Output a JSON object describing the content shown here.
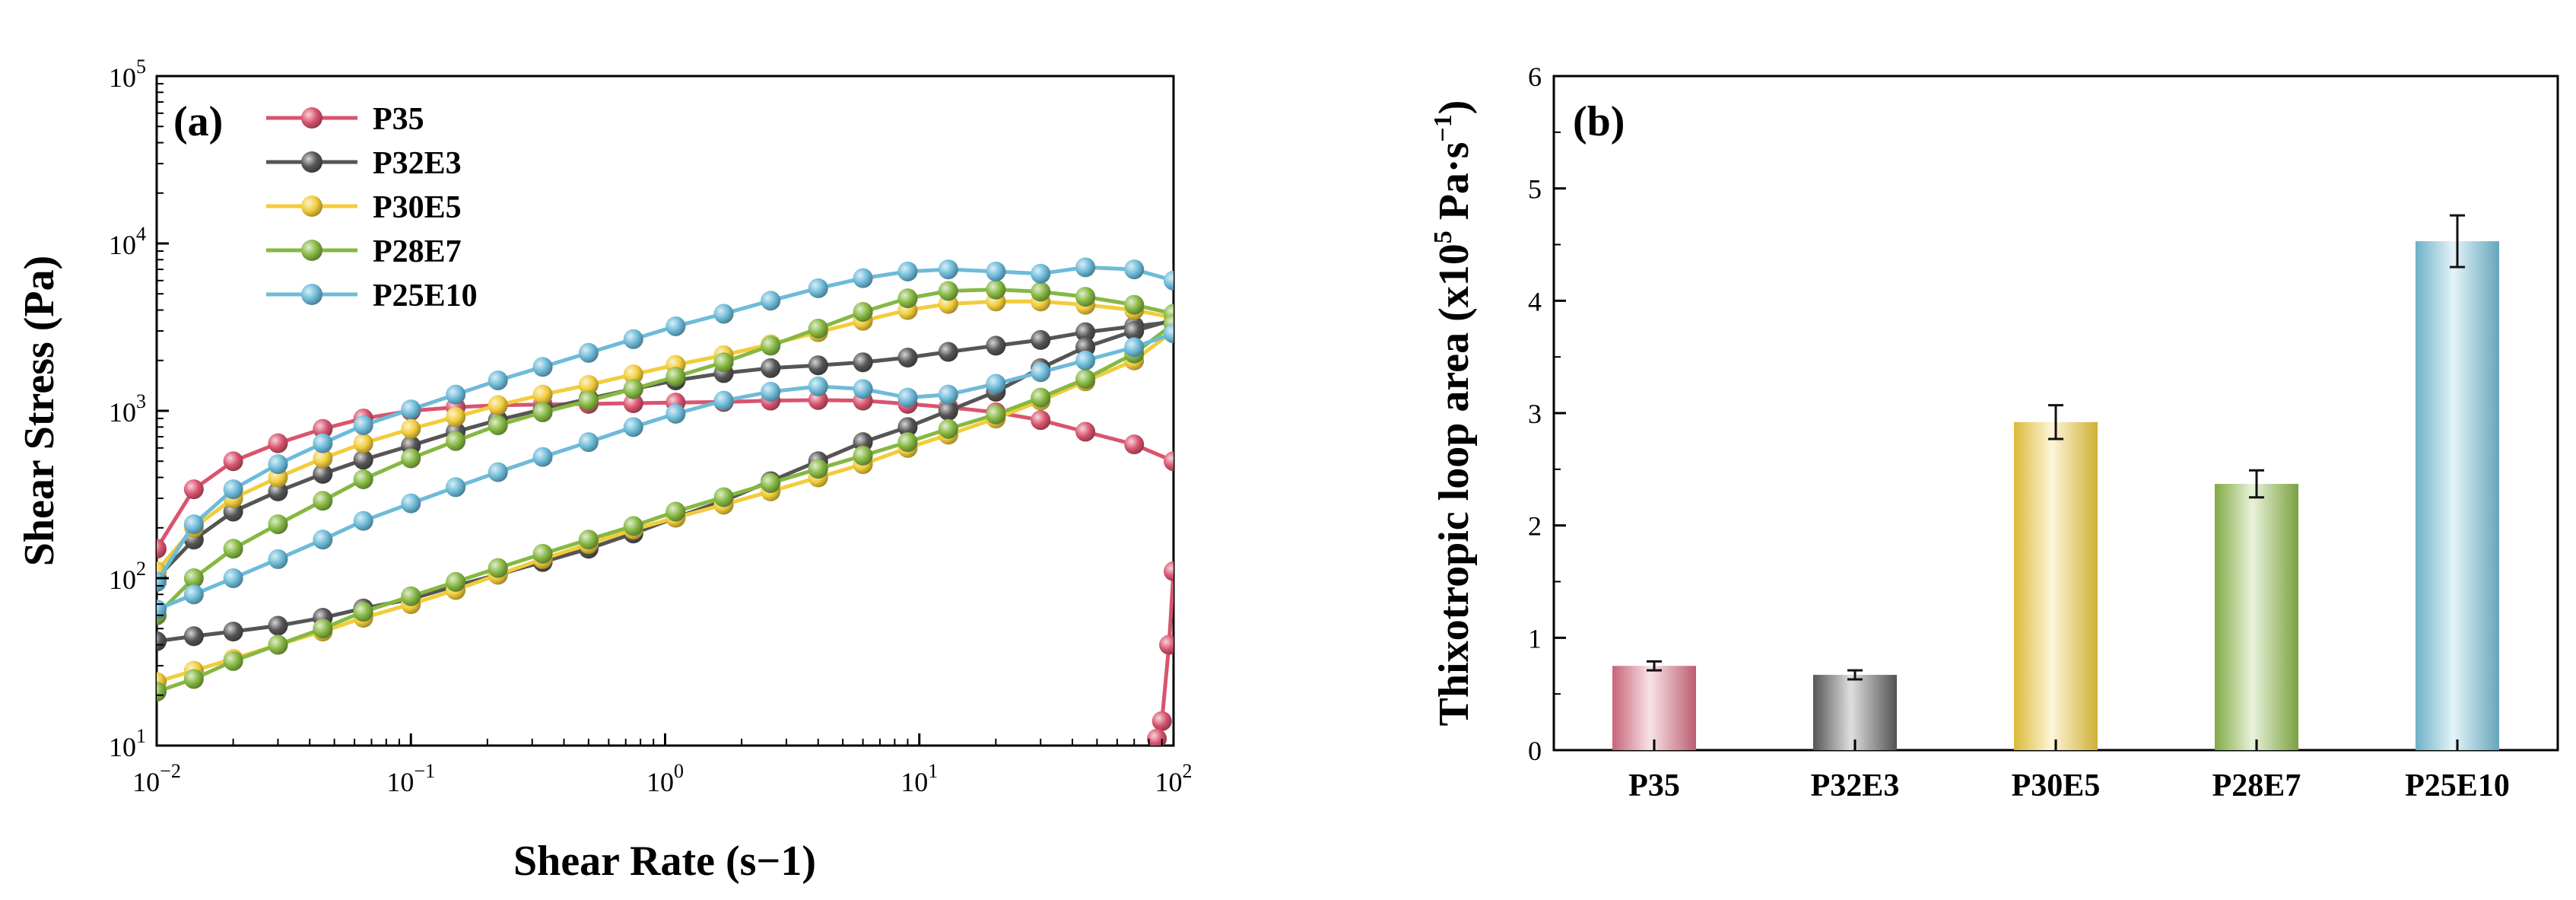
{
  "chart_data": [
    {
      "type": "line",
      "panel_label": "(a)",
      "xlabel": "Shear Rate (s−1)",
      "ylabel": "Shear Stress (Pa)",
      "x_scale": "log",
      "y_scale": "log",
      "xlim": [
        0.01,
        100
      ],
      "ylim": [
        10,
        100000
      ],
      "x_ticks": [
        {
          "value": 0.01,
          "base": "10",
          "exp": "−2"
        },
        {
          "value": 0.1,
          "base": "10",
          "exp": "−1"
        },
        {
          "value": 1,
          "base": "10",
          "exp": "0"
        },
        {
          "value": 10,
          "base": "10",
          "exp": "1"
        },
        {
          "value": 100,
          "base": "10",
          "exp": "2"
        }
      ],
      "y_ticks": [
        {
          "value": 10,
          "base": "10",
          "exp": "1"
        },
        {
          "value": 100,
          "base": "10",
          "exp": "2"
        },
        {
          "value": 1000,
          "base": "10",
          "exp": "3"
        },
        {
          "value": 10000,
          "base": "10",
          "exp": "4"
        },
        {
          "value": 100000,
          "base": "10",
          "exp": "5"
        }
      ],
      "legend_position": "top-left",
      "series": [
        {
          "name": "P35",
          "color": "#d9546e",
          "up_x": [
            0.01,
            0.014,
            0.02,
            0.03,
            0.045,
            0.065,
            0.1,
            0.15,
            0.22,
            0.33,
            0.5,
            0.75,
            1.1,
            1.7,
            2.6,
            4,
            6,
            9,
            13,
            20,
            30,
            45,
            70,
            100
          ],
          "up_y": [
            150,
            340,
            500,
            640,
            780,
            900,
            1000,
            1050,
            1080,
            1090,
            1100,
            1110,
            1120,
            1130,
            1150,
            1160,
            1150,
            1100,
            1050,
            980,
            880,
            750,
            630,
            500
          ],
          "down_x": [
            100,
            96,
            90,
            86
          ],
          "down_y": [
            110,
            40,
            14,
            11
          ]
        },
        {
          "name": "P32E3",
          "color": "#555555",
          "up_x": [
            0.01,
            0.014,
            0.02,
            0.03,
            0.045,
            0.065,
            0.1,
            0.15,
            0.22,
            0.33,
            0.5,
            0.75,
            1.1,
            1.7,
            2.6,
            4,
            6,
            9,
            13,
            20,
            30,
            45,
            70,
            100
          ],
          "up_y": [
            100,
            170,
            250,
            330,
            420,
            510,
            620,
            750,
            880,
            1020,
            1180,
            1350,
            1520,
            1680,
            1800,
            1870,
            1950,
            2080,
            2250,
            2450,
            2650,
            2950,
            3200,
            3400
          ],
          "down_x": [
            100,
            70,
            45,
            30,
            20,
            13,
            9,
            6,
            4,
            2.6,
            1.7,
            1.1,
            0.75,
            0.5,
            0.33,
            0.22,
            0.15,
            0.1,
            0.065,
            0.045,
            0.03,
            0.02,
            0.014,
            0.01
          ],
          "down_y": [
            3500,
            3000,
            2400,
            1800,
            1300,
            1000,
            800,
            650,
            500,
            380,
            290,
            230,
            185,
            150,
            125,
            105,
            90,
            75,
            66,
            58,
            52,
            48,
            45,
            42
          ]
        },
        {
          "name": "P30E5",
          "color": "#f2cc3a",
          "up_x": [
            0.01,
            0.014,
            0.02,
            0.03,
            0.045,
            0.065,
            0.1,
            0.15,
            0.22,
            0.33,
            0.5,
            0.75,
            1.1,
            1.7,
            2.6,
            4,
            6,
            9,
            13,
            20,
            30,
            45,
            70,
            100
          ],
          "up_y": [
            110,
            200,
            300,
            400,
            520,
            640,
            780,
            920,
            1080,
            1250,
            1430,
            1650,
            1880,
            2150,
            2500,
            2950,
            3450,
            4000,
            4350,
            4500,
            4500,
            4300,
            4000,
            3600
          ],
          "down_x": [
            100,
            70,
            45,
            30,
            20,
            13,
            9,
            6,
            4,
            2.6,
            1.7,
            1.1,
            0.75,
            0.5,
            0.33,
            0.22,
            0.15,
            0.1,
            0.065,
            0.045,
            0.03,
            0.02,
            0.014,
            0.01
          ],
          "down_y": [
            3000,
            2000,
            1500,
            1150,
            900,
            720,
            600,
            480,
            400,
            330,
            275,
            230,
            195,
            160,
            130,
            105,
            85,
            70,
            58,
            48,
            40,
            33,
            28,
            24
          ]
        },
        {
          "name": "P28E7",
          "color": "#86b842",
          "up_x": [
            0.01,
            0.014,
            0.02,
            0.03,
            0.045,
            0.065,
            0.1,
            0.15,
            0.22,
            0.33,
            0.5,
            0.75,
            1.1,
            1.7,
            2.6,
            4,
            6,
            9,
            13,
            20,
            30,
            45,
            70,
            100
          ],
          "up_y": [
            60,
            100,
            150,
            210,
            290,
            390,
            520,
            660,
            820,
            980,
            1150,
            1350,
            1600,
            1950,
            2450,
            3100,
            3900,
            4700,
            5200,
            5300,
            5150,
            4800,
            4300,
            3800
          ],
          "down_x": [
            100,
            70,
            45,
            30,
            20,
            13,
            9,
            6,
            4,
            2.6,
            1.7,
            1.1,
            0.75,
            0.5,
            0.33,
            0.22,
            0.15,
            0.1,
            0.065,
            0.045,
            0.03,
            0.02,
            0.014,
            0.01
          ],
          "down_y": [
            3300,
            2200,
            1550,
            1200,
            950,
            780,
            650,
            540,
            450,
            370,
            305,
            250,
            205,
            170,
            140,
            115,
            95,
            78,
            63,
            50,
            40,
            32,
            25,
            21
          ]
        },
        {
          "name": "P25E10",
          "color": "#6dbbd9",
          "up_x": [
            0.01,
            0.014,
            0.02,
            0.03,
            0.045,
            0.065,
            0.1,
            0.15,
            0.22,
            0.33,
            0.5,
            0.75,
            1.1,
            1.7,
            2.6,
            4,
            6,
            9,
            13,
            20,
            30,
            45,
            70,
            100
          ],
          "up_y": [
            95,
            210,
            340,
            480,
            640,
            820,
            1020,
            1250,
            1520,
            1830,
            2220,
            2680,
            3200,
            3800,
            4550,
            5400,
            6200,
            6800,
            7000,
            6800,
            6600,
            7200,
            7000,
            6000
          ],
          "down_x": [
            100,
            70,
            45,
            30,
            20,
            13,
            9,
            6,
            4,
            2.6,
            1.7,
            1.1,
            0.75,
            0.5,
            0.33,
            0.22,
            0.15,
            0.1,
            0.065,
            0.045,
            0.03,
            0.02,
            0.014,
            0.01
          ],
          "down_y": [
            2900,
            2400,
            2000,
            1700,
            1450,
            1250,
            1200,
            1350,
            1400,
            1300,
            1150,
            960,
            800,
            650,
            530,
            430,
            350,
            280,
            220,
            170,
            130,
            100,
            80,
            65
          ]
        }
      ]
    },
    {
      "type": "bar",
      "panel_label": "(b)",
      "ylabel": "Thixotropic loop area (x10",
      "ylabel_sup": "5",
      "ylabel_unit": " Pa·s",
      "ylabel_unit_sup": "−1",
      "ylabel_close": ")",
      "categories": [
        "P35",
        "P32E3",
        "P30E5",
        "P28E7",
        "P25E10"
      ],
      "values": [
        0.75,
        0.67,
        2.92,
        2.37,
        4.53
      ],
      "errors": [
        0.04,
        0.04,
        0.15,
        0.12,
        0.23
      ],
      "colors": [
        "#dd6f86",
        "#606060",
        "#f3cf3f",
        "#8fbd4a",
        "#79c3de"
      ],
      "ylim": [
        0,
        6
      ],
      "y_ticks": [
        "0",
        "1",
        "2",
        "3",
        "4",
        "5",
        "6"
      ]
    }
  ]
}
